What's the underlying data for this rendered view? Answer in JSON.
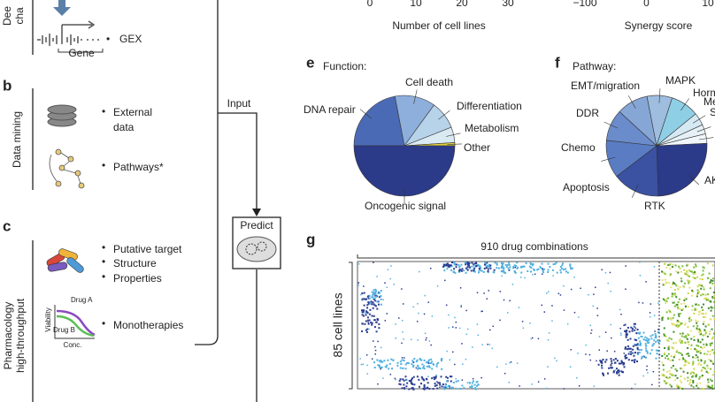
{
  "panel_a": {
    "heading_lines": [
      "Dee",
      "cha"
    ],
    "gene": "Gene",
    "gex": "GEX"
  },
  "top_axes": [
    {
      "ticks": [
        0,
        10,
        20,
        30
      ],
      "label": "Number of cell lines"
    },
    {
      "ticks": [
        {
          "value": -100,
          "label": "−100"
        },
        0,
        10
      ],
      "label": "Synergy score"
    }
  ],
  "panel_b": {
    "letter": "b",
    "heading": "Data mining",
    "items": [
      [
        "External",
        "data"
      ],
      [
        "Pathways*"
      ]
    ]
  },
  "panel_c": {
    "letter": "c",
    "heading_lines": [
      "Pharmacology",
      "high-throughput"
    ],
    "items": [
      "Putative target",
      "Structure",
      "Properties",
      "Monotherapies"
    ],
    "plot_labels": {
      "drug_a": "Drug A",
      "drug_b": "Drug B",
      "y_axis": "Viability",
      "x_axis": "Conc."
    }
  },
  "flow": {
    "input": "Input",
    "predict": "Predict"
  },
  "chart_data": [
    {
      "type": "pie",
      "letter": "e",
      "title": "Function:",
      "categories": [
        "DNA repair",
        "Cell death",
        "Differentiation",
        "Metabolism",
        "Other",
        "Oncogenic signal"
      ],
      "values": [
        22,
        13,
        9,
        5,
        1,
        50
      ],
      "colors": [
        "#4a6ab5",
        "#8eaedb",
        "#b7d3e9",
        "#daeaf3",
        "#e3d040",
        "#2c3a8a"
      ]
    },
    {
      "type": "pie",
      "letter": "f",
      "title": "Pathway:",
      "categories": [
        "AK",
        "RTK",
        "Apoptosis",
        "Chemo",
        "DDR",
        "EMT/migration",
        "MAPK",
        "Horm",
        "Me",
        "S"
      ],
      "values": [
        25,
        15,
        12,
        10,
        10,
        8,
        9,
        4,
        3,
        3
      ],
      "colors": [
        "#2c3a8a",
        "#3b52a3",
        "#5a7cc2",
        "#6b8ccb",
        "#86a6d6",
        "#9ebddf",
        "#8ecfe6",
        "#d5e9f3",
        "#e6f1f7",
        "#f0f6fa"
      ]
    }
  ],
  "panel_g": {
    "letter": "g",
    "columns": "910 drug combinations",
    "rows": "85 cell lines"
  }
}
